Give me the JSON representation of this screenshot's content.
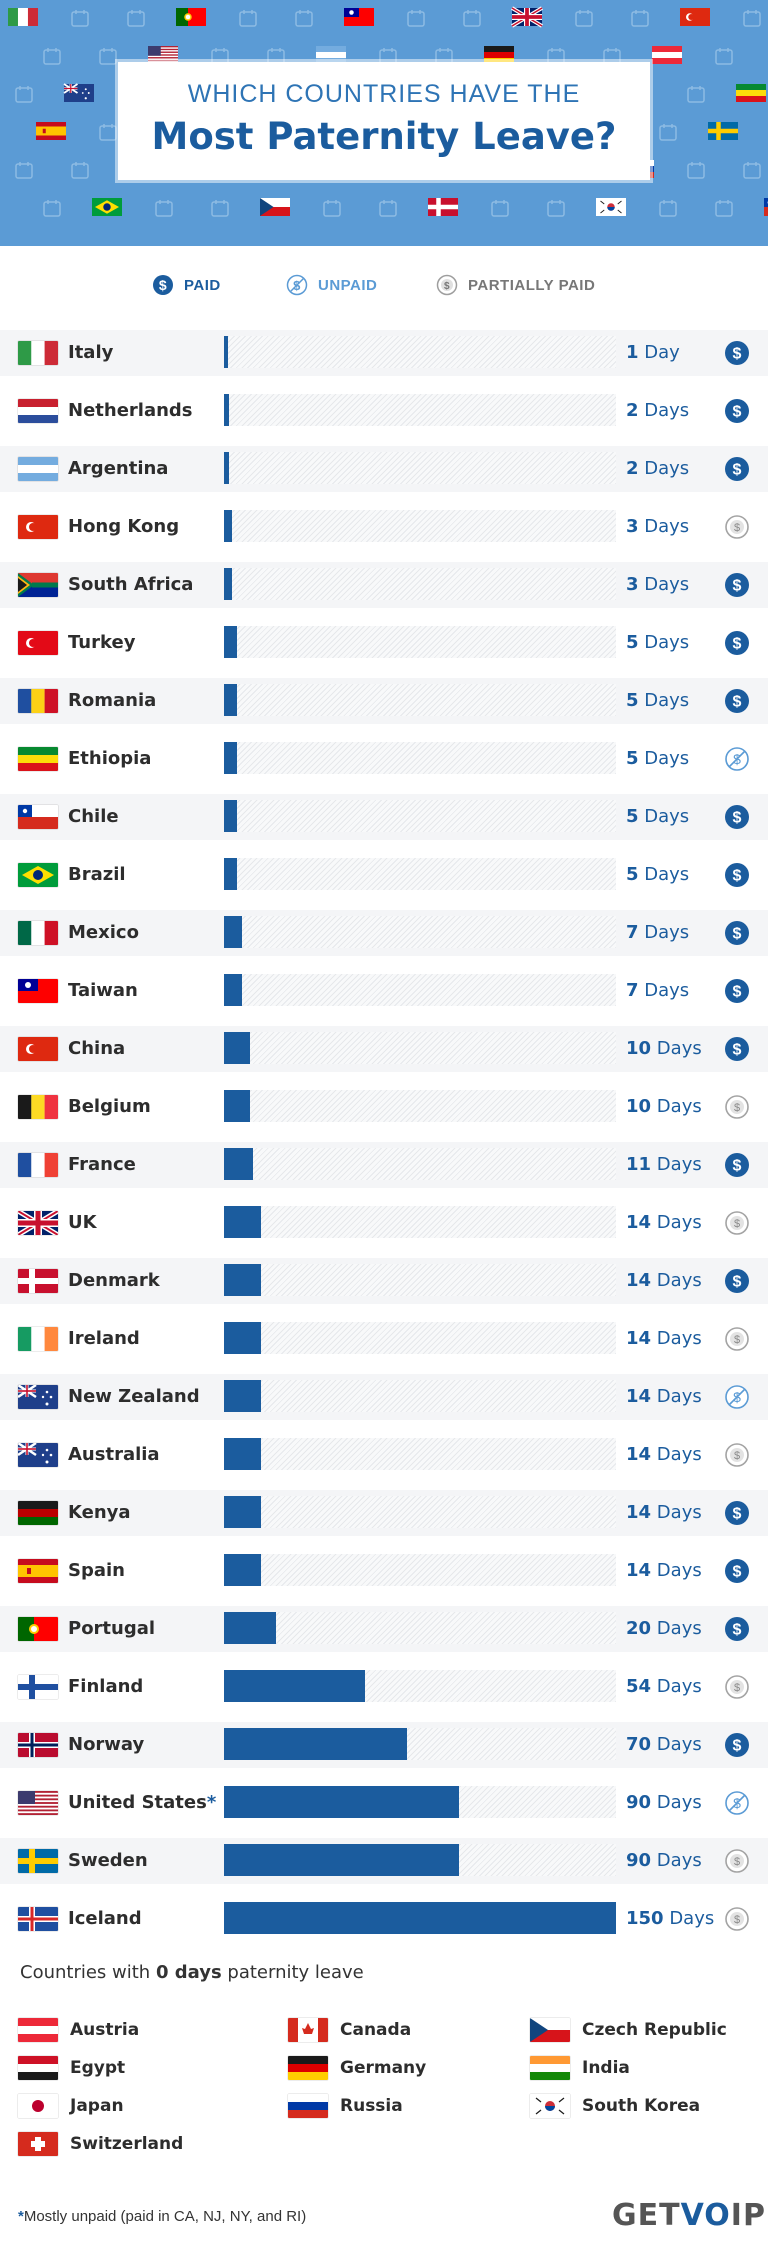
{
  "header": {
    "title_top": "WHICH COUNTRIES HAVE THE",
    "title_main": "Most Paternity Leave?"
  },
  "legend": {
    "paid": "PAID",
    "unpaid": "UNPAID",
    "partially_paid": "PARTIALLY PAID"
  },
  "colors": {
    "bar": "#1b5c9e",
    "header_bg": "#5b9bd5",
    "paid": "#1b5c9e",
    "unpaid": "#5b9bd5",
    "partial": "#9e9e9e"
  },
  "chart_data": {
    "type": "bar",
    "orientation": "horizontal",
    "xlim": [
      0,
      150
    ],
    "categories": [
      "Italy",
      "Netherlands",
      "Argentina",
      "Hong Kong",
      "South Africa",
      "Turkey",
      "Romania",
      "Ethiopia",
      "Chile",
      "Brazil",
      "Mexico",
      "Taiwan",
      "China",
      "Belgium",
      "France",
      "UK",
      "Denmark",
      "Ireland",
      "New Zealand",
      "Australia",
      "Kenya",
      "Spain",
      "Portugal",
      "Finland",
      "Norway",
      "United States",
      "Sweden",
      "Iceland"
    ],
    "values": [
      1,
      2,
      2,
      3,
      3,
      5,
      5,
      5,
      5,
      5,
      7,
      7,
      10,
      10,
      11,
      14,
      14,
      14,
      14,
      14,
      14,
      14,
      20,
      54,
      70,
      90,
      90,
      150
    ],
    "data_labels": [
      {
        "num": "1",
        "unit": "Day"
      },
      {
        "num": "2",
        "unit": "Days"
      },
      {
        "num": "2",
        "unit": "Days"
      },
      {
        "num": "3",
        "unit": "Days"
      },
      {
        "num": "3",
        "unit": "Days"
      },
      {
        "num": "5",
        "unit": "Days"
      },
      {
        "num": "5",
        "unit": "Days"
      },
      {
        "num": "5",
        "unit": "Days"
      },
      {
        "num": "5",
        "unit": "Days"
      },
      {
        "num": "5",
        "unit": "Days"
      },
      {
        "num": "7",
        "unit": "Days"
      },
      {
        "num": "7",
        "unit": "Days"
      },
      {
        "num": "10",
        "unit": "Days"
      },
      {
        "num": "10",
        "unit": "Days"
      },
      {
        "num": "11",
        "unit": "Days"
      },
      {
        "num": "14",
        "unit": "Days"
      },
      {
        "num": "14",
        "unit": "Days"
      },
      {
        "num": "14",
        "unit": "Days"
      },
      {
        "num": "14",
        "unit": "Days"
      },
      {
        "num": "14",
        "unit": "Days"
      },
      {
        "num": "14",
        "unit": "Days"
      },
      {
        "num": "14",
        "unit": "Days"
      },
      {
        "num": "20",
        "unit": "Days"
      },
      {
        "num": "54",
        "unit": "Days"
      },
      {
        "num": "70",
        "unit": "Days"
      },
      {
        "num": "90",
        "unit": "Days"
      },
      {
        "num": "90",
        "unit": "Days"
      },
      {
        "num": "150",
        "unit": "Days"
      }
    ],
    "status": [
      "paid",
      "paid",
      "paid",
      "partial",
      "paid",
      "paid",
      "paid",
      "unpaid",
      "paid",
      "paid",
      "paid",
      "paid",
      "paid",
      "partial",
      "paid",
      "partial",
      "paid",
      "partial",
      "unpaid",
      "partial",
      "paid",
      "paid",
      "paid",
      "partial",
      "paid",
      "unpaid",
      "partial",
      "partial"
    ],
    "country_suffix": [
      "",
      "",
      "",
      "",
      "",
      "",
      "",
      "",
      "",
      "",
      "",
      "",
      "",
      "",
      "",
      "",
      "",
      "",
      "",
      "",
      "",
      "",
      "",
      "",
      "",
      "*",
      "",
      ""
    ]
  },
  "zero_section": {
    "title_prefix": "Countries with ",
    "title_bold": "0 days",
    "title_suffix": " paternity leave",
    "countries": [
      "Austria",
      "Canada",
      "Czech Republic",
      "Egypt",
      "Germany",
      "India",
      "Japan",
      "Russia",
      "South Korea",
      "Switzerland"
    ]
  },
  "footer": {
    "star": "*",
    "note": "Mostly unpaid (paid in CA, NJ, NY, and RI)",
    "logo_a": "GET",
    "logo_b": "VO",
    "logo_c": "IP"
  }
}
